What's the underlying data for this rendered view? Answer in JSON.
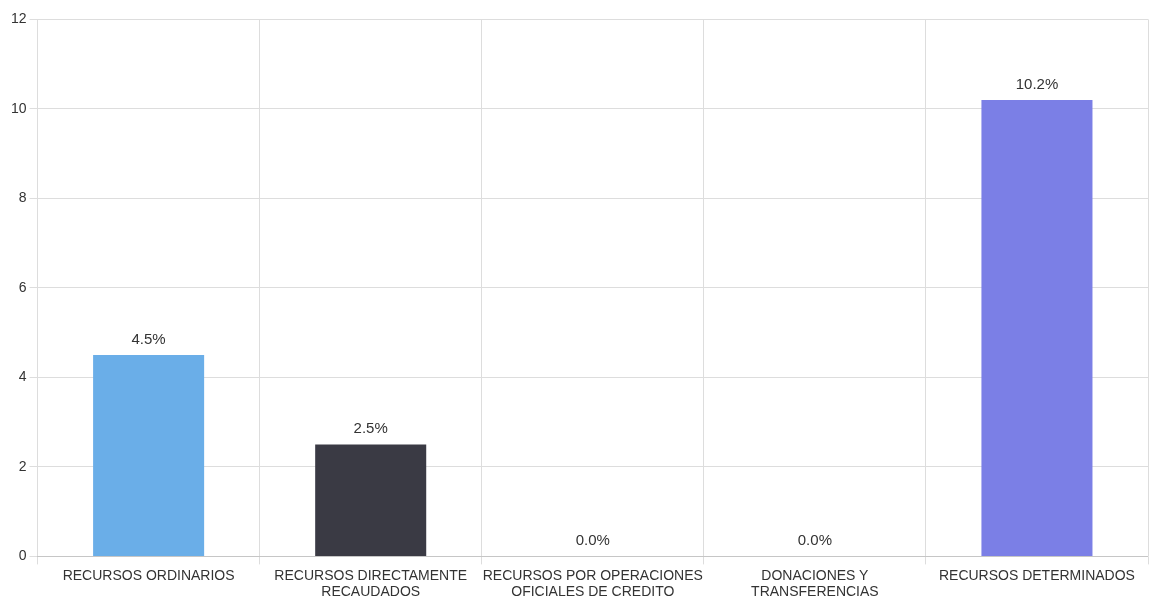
{
  "chart_data": {
    "type": "bar",
    "categories": [
      "RECURSOS ORDINARIOS",
      "RECURSOS DIRECTAMENTE RECAUDADOS",
      "RECURSOS POR OPERACIONES OFICIALES DE CREDITO",
      "DONACIONES Y TRANSFERENCIAS",
      "RECURSOS DETERMINADOS"
    ],
    "values": [
      4.5,
      2.5,
      0.0,
      0.0,
      10.2
    ],
    "colors": [
      "#6aaee8",
      "#3a3a44",
      "#7de06a",
      "#f0a060",
      "#7b7fe6"
    ],
    "value_labels": [
      "4.5%",
      "2.5%",
      "0.0%",
      "0.0%",
      "10.2%"
    ],
    "ylim": [
      0,
      12
    ],
    "yticks": [
      0,
      2,
      4,
      6,
      8,
      10,
      12
    ],
    "grid": true,
    "legend": false
  }
}
